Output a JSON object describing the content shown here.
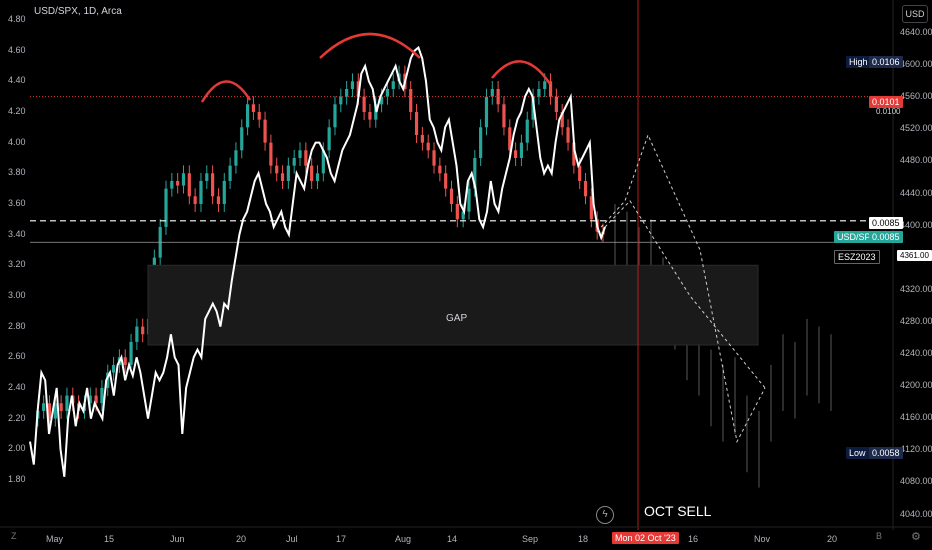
{
  "header": {
    "title": "USD/SPX, 1D, Arca"
  },
  "ui": {
    "currency_button": "USD",
    "z_icon": "Z",
    "b_icon": "B",
    "gear_icon": "⚙"
  },
  "annotations": {
    "gap_label": "GAP",
    "oct_sell": "OCT SELL",
    "high_label": "High",
    "high_value": "0.0106",
    "low_label": "Low",
    "low_value": "0.0058",
    "red_line_value": "0.0101",
    "red_line_under": "0.0100",
    "dashed_value": "0.0085",
    "usdspx_label": "USD/SPX",
    "usdspx_value": "0.0085",
    "esz_label": "ESZ2023",
    "esz_value": "4361.00",
    "cursor_date": "Mon 02 Oct '23"
  },
  "chart_data": {
    "type": "line",
    "title": "USD/SPX, 1D, Arca",
    "left_axis": {
      "ticks": [
        "4.80",
        "4.60",
        "4.40",
        "4.20",
        "4.00",
        "3.80",
        "3.60",
        "3.40",
        "3.20",
        "3.00",
        "2.80",
        "2.60",
        "2.40",
        "2.20",
        "2.00",
        "1.80"
      ],
      "range": [
        1.72,
        4.92
      ]
    },
    "right_axis": {
      "ticks": [
        "4640.00",
        "4600.00",
        "4560.00",
        "4520.00",
        "4480.00",
        "4440.00",
        "4400.00",
        "4360.00",
        "4320.00",
        "4280.00",
        "4240.00",
        "4200.00",
        "4160.00",
        "4120.00",
        "4080.00",
        "4040.00"
      ]
    },
    "x_ticks": [
      "May",
      "15",
      "Jun",
      "20",
      "Jul",
      "17",
      "Aug",
      "14",
      "Sep",
      "18",
      "16",
      "Nov",
      "20"
    ],
    "series": [
      {
        "role": "white line",
        "values": [
          2.05,
          1.9,
          2.25,
          2.5,
          2.45,
          2.1,
          2.25,
          2.4,
          2.0,
          1.82,
          2.2,
          2.35,
          2.15,
          2.3,
          2.25,
          2.4,
          2.2,
          2.3,
          2.25,
          2.2,
          2.45,
          2.5,
          2.35,
          2.55,
          2.6,
          2.45,
          2.55,
          2.48,
          2.6,
          2.5,
          2.35,
          2.2,
          2.35,
          2.5,
          2.45,
          2.5,
          2.6,
          2.75,
          2.6,
          2.55,
          2.1,
          2.4,
          2.5,
          2.6,
          2.65,
          2.6,
          2.85,
          2.9,
          2.95,
          2.9,
          2.8,
          2.95,
          2.92,
          3.1,
          3.25,
          3.4,
          3.5,
          3.55,
          3.65,
          3.75,
          3.8,
          3.7,
          3.6,
          3.55,
          3.45,
          3.5,
          3.55,
          3.45,
          3.4,
          3.6,
          3.8,
          3.75,
          3.7,
          3.85,
          3.95,
          4.0,
          4.0,
          3.95,
          3.9,
          3.8,
          3.75,
          3.85,
          3.95,
          4.0,
          4.05,
          4.15,
          4.25,
          4.45,
          4.5,
          4.4,
          4.35,
          4.2,
          4.3,
          4.35,
          4.4,
          4.45,
          4.5,
          4.4,
          4.35,
          4.45,
          4.55,
          4.6,
          4.62,
          4.55,
          4.4,
          4.15,
          4.1,
          4.0,
          3.95,
          4.1,
          4.15,
          4.0,
          3.85,
          3.6,
          3.55,
          3.75,
          3.8,
          3.7,
          3.5,
          3.45,
          3.55,
          3.75,
          3.6,
          3.55,
          3.7,
          3.8,
          3.9,
          4.05,
          4.15,
          4.2,
          4.3,
          4.35,
          4.3,
          4.1,
          3.9,
          3.8,
          3.85,
          3.8,
          4.0,
          4.15,
          4.2,
          4.25,
          4.3,
          3.95,
          3.85,
          3.9,
          3.95,
          4.0,
          3.6,
          3.45,
          3.38,
          3.45
        ]
      },
      {
        "role": "candles",
        "values": [
          2.2,
          2.25,
          2.3,
          2.2,
          2.3,
          2.25,
          2.35,
          2.3,
          2.25,
          2.3,
          2.35,
          2.3,
          2.4,
          2.5,
          2.55,
          2.6,
          2.55,
          2.7,
          2.8,
          2.75,
          2.85,
          3.25,
          3.45,
          3.7,
          3.75,
          3.72,
          3.8,
          3.65,
          3.6,
          3.75,
          3.8,
          3.65,
          3.6,
          3.75,
          3.85,
          3.95,
          4.1,
          4.25,
          4.2,
          4.15,
          4.0,
          3.85,
          3.8,
          3.75,
          3.85,
          3.9,
          3.95,
          3.85,
          3.75,
          3.8,
          3.95,
          4.1,
          4.25,
          4.3,
          4.35,
          4.4,
          4.3,
          4.2,
          4.15,
          4.25,
          4.3,
          4.35,
          4.4,
          4.45,
          4.35,
          4.2,
          4.05,
          4.0,
          3.95,
          3.85,
          3.8,
          3.7,
          3.6,
          3.5,
          3.55,
          3.7,
          3.9,
          4.1,
          4.3,
          4.35,
          4.25,
          4.1,
          3.95,
          3.9,
          4.0,
          4.15,
          4.3,
          4.35,
          4.4,
          4.3,
          4.2,
          4.1,
          4.0,
          3.85,
          3.75,
          3.65,
          3.5,
          3.42,
          3.4
        ]
      },
      {
        "role": "projection dashed",
        "points": [
          [
            3.45,
            0
          ],
          [
            3.62,
            1
          ],
          [
            3.75,
            2
          ],
          [
            4.05,
            3
          ],
          [
            3.9,
            4
          ],
          [
            3.6,
            5
          ],
          [
            3.3,
            6
          ],
          [
            2.95,
            7
          ],
          [
            2.65,
            8
          ],
          [
            2.3,
            9
          ],
          [
            2.05,
            10
          ],
          [
            2.15,
            11
          ],
          [
            2.4,
            12
          ]
        ]
      },
      {
        "role": "projection dashed 2",
        "points": [
          [
            3.62,
            0
          ],
          [
            4.05,
            1
          ],
          [
            3.6,
            2
          ],
          [
            3.1,
            3
          ],
          [
            2.6,
            4
          ],
          [
            2.15,
            5
          ]
        ]
      }
    ],
    "levels": {
      "red_dotted": 4.3,
      "white_dashed": 3.49,
      "grey_solid": 3.35
    },
    "gap_box": {
      "from": 2.68,
      "to": 3.2
    },
    "head_and_shoulders_arcs": 3,
    "future_wicks": true
  }
}
